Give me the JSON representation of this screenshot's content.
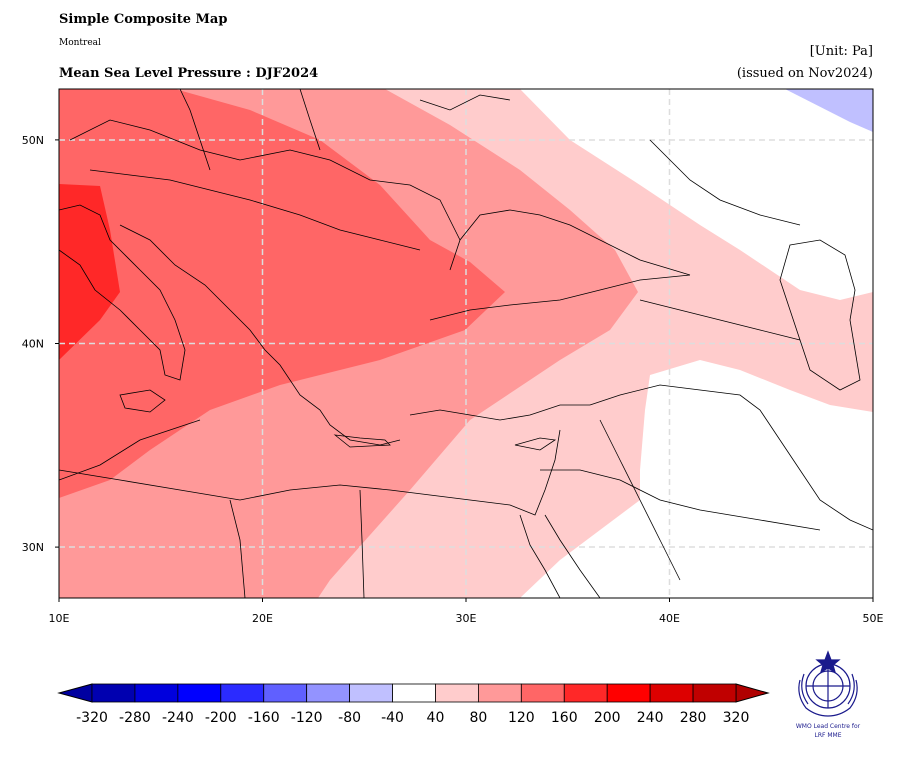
{
  "header": {
    "title": "Simple Composite Map",
    "subtitle": "Montreal",
    "map_title": "Mean Sea Level Pressure : DJF2024",
    "unit": "[Unit: Pa]",
    "issued": "(issued on Nov2024)"
  },
  "map": {
    "lon_range": [
      10,
      50
    ],
    "lat_range": [
      27.5,
      52.5
    ],
    "lon_ticks": [
      {
        "value": 10,
        "label": "10E"
      },
      {
        "value": 20,
        "label": "20E"
      },
      {
        "value": 30,
        "label": "30E"
      },
      {
        "value": 40,
        "label": "40E"
      },
      {
        "value": 50,
        "label": "50E"
      }
    ],
    "lat_ticks": [
      {
        "value": 30,
        "label": "30N"
      },
      {
        "value": 40,
        "label": "40N"
      },
      {
        "value": 50,
        "label": "50N"
      }
    ],
    "grid": true,
    "coastlines": true,
    "fill_colors": {
      "40_80": "#ffcccc",
      "80_120": "#ff9999",
      "120_160": "#ff6666",
      "160_200": "#ff2828",
      "neg40_neg80": "#c0c0ff",
      "zero_band": "#ffffff"
    }
  },
  "colorbar": {
    "labels": [
      "-320",
      "-280",
      "-240",
      "-200",
      "-160",
      "-120",
      "-80",
      "-40",
      "40",
      "80",
      "120",
      "160",
      "200",
      "240",
      "280",
      "320"
    ],
    "colors": [
      "#0000b0",
      "#0000dd",
      "#0000ff",
      "#2b2bff",
      "#6060ff",
      "#9393ff",
      "#c0c0ff",
      "#ffffff",
      "#ffcccc",
      "#ff9999",
      "#ff6666",
      "#ff2828",
      "#ff0000",
      "#dd0000",
      "#c00000"
    ],
    "under_color": "#0000a0",
    "over_color": "#b00000"
  },
  "logo": {
    "icon": "wmo-emblem-icon",
    "line1": "WMO Lead Centre for",
    "line2": "LRF MME"
  }
}
